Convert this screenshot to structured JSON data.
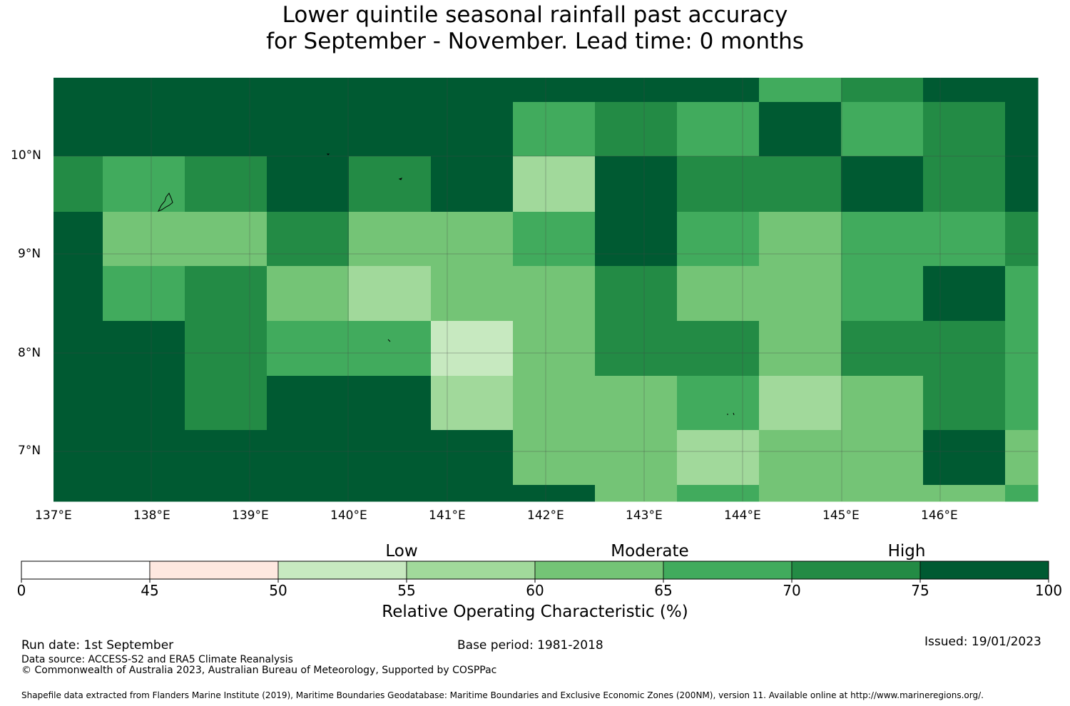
{
  "title": {
    "line1": "Lower quintile seasonal rainfall past accuracy",
    "line2": "for September - November. Lead time: 0 months"
  },
  "map": {
    "lon_labels": [
      "137°E",
      "138°E",
      "139°E",
      "140°E",
      "141°E",
      "142°E",
      "143°E",
      "144°E",
      "145°E",
      "146°E"
    ],
    "lat_labels": [
      "10°N",
      "9°N",
      "8°N",
      "7°N"
    ],
    "extent": {
      "lon_min": 137.0,
      "lon_max": 147.0,
      "lat_min": 6.5,
      "lat_max": 10.8
    },
    "palette": [
      "#ffffff",
      "#fee8e0",
      "#c7e9c0",
      "#a1d99b",
      "#74c476",
      "#41ab5d",
      "#238b45",
      "#005a32"
    ],
    "grid_color": "#444444",
    "coastline_color": "#000000"
  },
  "colorbar": {
    "words": {
      "low": "Low",
      "moderate": "Moderate",
      "high": "High"
    },
    "bounds": [
      0,
      45,
      50,
      55,
      60,
      65,
      70,
      75,
      100
    ],
    "tick_labels": [
      "0",
      "45",
      "50",
      "55",
      "60",
      "65",
      "70",
      "75",
      "100"
    ],
    "colors": [
      "#ffffff",
      "#fee8e0",
      "#c7e9c0",
      "#a1d99b",
      "#74c476",
      "#41ab5d",
      "#238b45",
      "#005a32"
    ],
    "label": "Relative Operating Characteristic (%)"
  },
  "footer": {
    "run_date": "Run date: 1st September",
    "base_period": "Base period: 1981-2018",
    "issued": "Issued: 19/01/2023",
    "data_source": "Data source: ACCESS-S2 and ERA5 Climate Reanalysis",
    "copyright": "© Commonwealth of Australia 2023, Australian Bureau of Meteorology, Supported by COSPPac",
    "shapefile": "Shapefile data extracted from Flanders Marine Institute (2019), Maritime Boundaries Geodatabase: Maritime Boundaries and Exclusive Economic Zones (200NM), version 11. Available online at http://www.marineregions.org/."
  }
}
